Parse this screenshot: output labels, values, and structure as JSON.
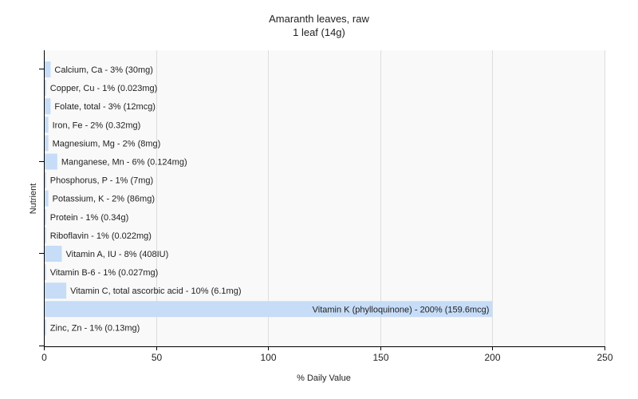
{
  "chart_data": {
    "type": "bar",
    "orientation": "horizontal",
    "title": "Amaranth leaves, raw",
    "subtitle": "1 leaf (14g)",
    "xlabel": "% Daily Value",
    "ylabel": "Nutrient",
    "xlim": [
      0,
      250
    ],
    "xticks": [
      0,
      50,
      100,
      150,
      200,
      250
    ],
    "grid": "vertical",
    "bar_color": "#c6dcf7",
    "categories": [
      "Calcium, Ca - 3% (30mg)",
      "Copper, Cu - 1% (0.023mg)",
      "Folate, total - 3% (12mcg)",
      "Iron, Fe - 2% (0.32mg)",
      "Magnesium, Mg - 2% (8mg)",
      "Manganese, Mn - 6% (0.124mg)",
      "Phosphorus, P - 1% (7mg)",
      "Potassium, K - 2% (86mg)",
      "Protein - 1% (0.34g)",
      "Riboflavin - 1% (0.022mg)",
      "Vitamin A, IU - 8% (408IU)",
      "Vitamin B-6 - 1% (0.027mg)",
      "Vitamin C, total ascorbic acid - 10% (6.1mg)",
      "Vitamin K (phylloquinone) - 200% (159.6mcg)",
      "Zinc, Zn - 1% (0.13mg)"
    ],
    "values": [
      3,
      1,
      3,
      2,
      2,
      6,
      1,
      2,
      1,
      1,
      8,
      1,
      10,
      200,
      1
    ]
  }
}
